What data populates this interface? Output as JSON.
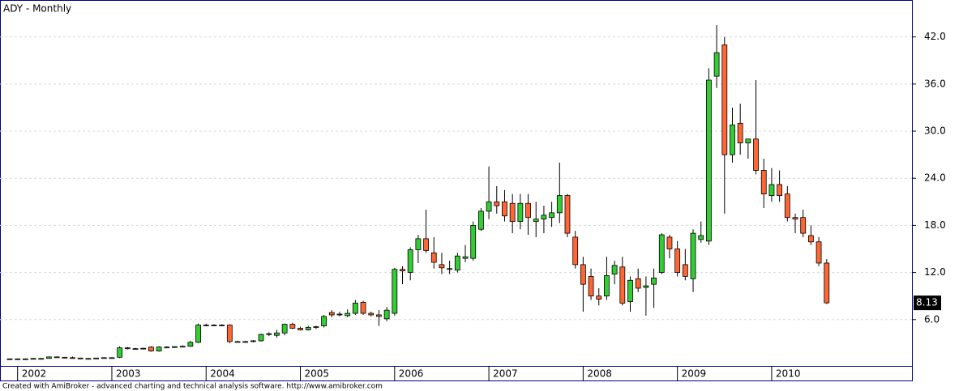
{
  "chart_data": {
    "type": "candlestick",
    "title": "ADY - Monthly",
    "annotation": "Created with AmiBroker - advanced charting and technical analysis software. http://www.amibroker.com",
    "up_color": "#33cc33",
    "down_color": "#ff6633",
    "grid": true,
    "categories": [
      null,
      "2002",
      null,
      null,
      null,
      null,
      null,
      null,
      null,
      null,
      null,
      null,
      null,
      "2003",
      null,
      null,
      null,
      null,
      null,
      null,
      null,
      null,
      null,
      null,
      null,
      "2004",
      null,
      null,
      null,
      null,
      null,
      null,
      null,
      null,
      null,
      null,
      null,
      "2005",
      null,
      null,
      null,
      null,
      null,
      null,
      null,
      null,
      null,
      null,
      null,
      "2006",
      null,
      null,
      null,
      null,
      null,
      null,
      null,
      null,
      null,
      null,
      null,
      "2007",
      null,
      null,
      null,
      null,
      null,
      null,
      null,
      null,
      null,
      null,
      null,
      "2008",
      null,
      null,
      null,
      null,
      null,
      null,
      null,
      null,
      null,
      null,
      null,
      "2009",
      null,
      null,
      null,
      null,
      null,
      null,
      null,
      null,
      null,
      null,
      null,
      "2010",
      null,
      null,
      null,
      null,
      null,
      null,
      null
    ],
    "open": [
      1.0,
      1.0,
      1.0,
      1.0,
      1.05,
      1.05,
      1.25,
      1.2,
      1.15,
      1.1,
      1.05,
      1.05,
      1.1,
      1.15,
      1.2,
      2.4,
      2.3,
      2.3,
      2.5,
      2.0,
      2.5,
      2.5,
      2.55,
      2.6,
      3.1,
      5.3,
      5.3,
      5.3,
      5.3,
      3.2,
      3.2,
      3.2,
      3.3,
      4.1,
      4.0,
      4.3,
      5.4,
      4.9,
      4.7,
      5.0,
      5.2,
      6.9,
      6.6,
      6.5,
      6.8,
      8.2,
      6.8,
      6.6,
      6.1,
      6.8,
      12.4,
      12.0,
      14.9,
      16.3,
      14.5,
      13.0,
      12.4,
      12.3,
      13.8,
      13.8,
      17.5,
      19.8,
      21.0,
      21.0,
      20.8,
      18.5,
      20.8,
      18.5,
      18.8,
      19.0,
      19.6,
      21.8,
      16.5,
      13.0,
      11.5,
      9.0,
      9.0,
      11.8,
      12.7,
      8.3,
      11.2,
      10.1,
      10.5,
      12.0,
      16.5,
      15.0,
      13.0,
      11.2,
      16.2,
      16.0,
      37.0,
      41.0,
      27.0,
      31.0,
      28.5,
      29.0,
      25.0,
      21.8,
      23.2,
      22.0,
      19.0,
      19.0,
      16.7,
      15.9,
      13.2
    ],
    "high": [
      1.05,
      1.05,
      1.05,
      1.1,
      1.1,
      1.3,
      1.3,
      1.25,
      1.3,
      1.15,
      1.1,
      1.15,
      1.2,
      1.2,
      2.6,
      2.5,
      2.4,
      2.4,
      2.6,
      2.6,
      2.6,
      2.6,
      2.7,
      3.3,
      5.5,
      5.5,
      5.4,
      5.4,
      5.4,
      3.3,
      3.3,
      3.4,
      4.2,
      4.4,
      4.7,
      5.5,
      5.6,
      5.1,
      5.2,
      5.2,
      6.6,
      7.2,
      7.0,
      7.3,
      8.5,
      8.4,
      7.0,
      7.2,
      7.6,
      12.6,
      12.8,
      15.2,
      16.8,
      20.0,
      16.5,
      14.5,
      13.5,
      14.5,
      15.5,
      18.5,
      20.2,
      25.5,
      23.0,
      22.5,
      22.0,
      22.0,
      22.0,
      21.0,
      20.5,
      21.0,
      26.0,
      22.0,
      17.3,
      14.0,
      12.5,
      10.0,
      14.0,
      13.5,
      14.0,
      11.5,
      12.5,
      11.5,
      12.5,
      17.0,
      16.8,
      16.0,
      15.0,
      17.5,
      18.5,
      38.0,
      43.5,
      42.0,
      33.0,
      33.5,
      29.0,
      36.5,
      26.5,
      25.3,
      25.0,
      23.0,
      19.5,
      20.0,
      18.0,
      16.5,
      13.7
    ],
    "low": [
      0.95,
      0.95,
      0.95,
      0.95,
      1.0,
      1.05,
      1.15,
      1.1,
      1.05,
      1.0,
      1.0,
      1.0,
      1.05,
      1.1,
      1.1,
      2.2,
      2.2,
      2.2,
      1.9,
      1.9,
      2.4,
      2.4,
      2.5,
      2.5,
      3.0,
      5.2,
      5.2,
      5.2,
      3.0,
      3.1,
      3.1,
      3.1,
      3.2,
      3.9,
      3.7,
      4.0,
      4.8,
      4.6,
      4.6,
      4.8,
      5.0,
      6.3,
      6.4,
      6.3,
      6.6,
      6.6,
      6.4,
      5.2,
      5.8,
      6.5,
      10.5,
      11.0,
      13.2,
      14.5,
      12.5,
      11.8,
      11.8,
      12.0,
      13.3,
      13.5,
      17.3,
      18.8,
      19.5,
      18.5,
      17.0,
      17.5,
      16.8,
      16.5,
      17.0,
      17.8,
      18.3,
      16.5,
      12.5,
      7.0,
      8.5,
      7.8,
      8.5,
      10.5,
      7.8,
      7.0,
      9.5,
      6.5,
      7.5,
      11.8,
      13.8,
      11.5,
      11.0,
      9.5,
      15.8,
      15.5,
      35.5,
      19.5,
      26.0,
      27.0,
      26.5,
      24.5,
      20.2,
      21.0,
      21.0,
      18.5,
      17.0,
      16.5,
      15.5,
      12.8,
      8.0
    ],
    "close": [
      1.0,
      1.0,
      1.0,
      1.05,
      1.05,
      1.25,
      1.2,
      1.15,
      1.1,
      1.05,
      1.05,
      1.1,
      1.15,
      1.15,
      2.4,
      2.3,
      2.3,
      2.35,
      2.0,
      2.5,
      2.5,
      2.55,
      2.6,
      3.1,
      5.3,
      5.3,
      5.3,
      5.3,
      3.2,
      3.2,
      3.2,
      3.3,
      4.1,
      4.2,
      4.3,
      5.4,
      4.9,
      4.7,
      5.0,
      5.1,
      6.4,
      6.6,
      6.7,
      6.8,
      8.1,
      6.8,
      6.6,
      6.4,
      7.2,
      12.4,
      12.2,
      14.9,
      16.3,
      14.8,
      13.3,
      12.6,
      12.5,
      14.1,
      14.0,
      18.0,
      19.8,
      21.0,
      20.5,
      19.2,
      18.5,
      20.8,
      19.0,
      18.8,
      19.3,
      19.6,
      21.8,
      17.0,
      13.0,
      10.5,
      9.0,
      8.6,
      11.6,
      12.9,
      8.1,
      11.0,
      10.0,
      10.3,
      11.3,
      16.8,
      15.0,
      12.0,
      11.5,
      17.0,
      16.7,
      36.5,
      40.0,
      27.0,
      30.8,
      28.5,
      29.0,
      25.0,
      22.0,
      23.2,
      21.8,
      19.0,
      18.8,
      17.0,
      15.9,
      13.2,
      8.13
    ],
    "ylim": [
      0.1,
      46.5
    ],
    "yticks": [
      {
        "value": 6,
        "label": "6.0"
      },
      {
        "value": 12,
        "label": "12.0"
      },
      {
        "value": 18,
        "label": "18.0"
      },
      {
        "value": 24,
        "label": "24.0"
      },
      {
        "value": 30,
        "label": "30.0"
      },
      {
        "value": 36,
        "label": "36.0"
      },
      {
        "value": 42,
        "label": "42.0"
      }
    ]
  }
}
